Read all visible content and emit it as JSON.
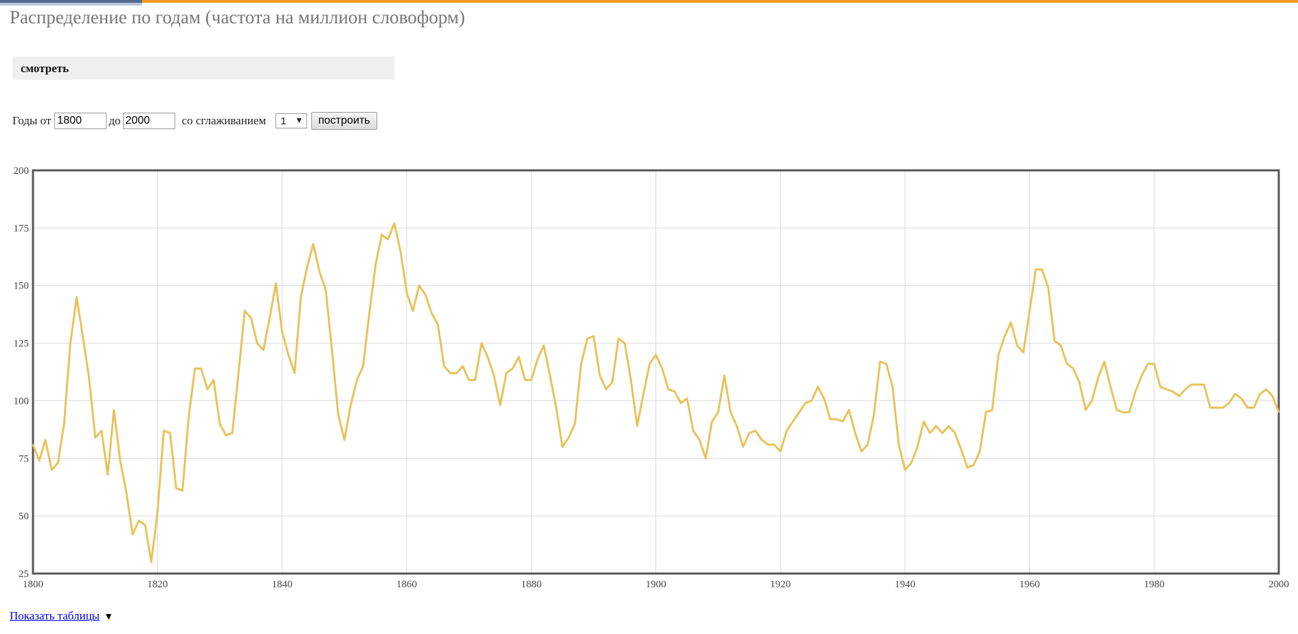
{
  "page": {
    "title": "Распределение по годам (частота на миллион словоформ)",
    "view_label": "смотреть",
    "show_table_label": "Показать таблицы",
    "show_table_arrow": "▼"
  },
  "controls": {
    "years_from_label": "Годы от",
    "years_from_value": "1800",
    "years_to_label": "до",
    "years_to_value": "2000",
    "smoothing_label": "со сглаживанием",
    "smoothing_value": "1",
    "build_button": "построить"
  },
  "colors": {
    "line": "#e8c25a",
    "accent_orange": "#f39a1e",
    "grid": "#d9d9d9",
    "frame": "#555555"
  },
  "chart_data": {
    "type": "line",
    "title": "",
    "xlabel": "",
    "ylabel": "",
    "xlim": [
      1800,
      2000
    ],
    "ylim": [
      25,
      200
    ],
    "grid": true,
    "x_ticks": [
      1800,
      1820,
      1840,
      1860,
      1880,
      1900,
      1920,
      1940,
      1960,
      1980,
      2000
    ],
    "y_ticks": [
      25,
      50,
      75,
      100,
      125,
      150,
      175,
      200
    ],
    "series": [
      {
        "name": "",
        "x": [
          1800,
          1801,
          1802,
          1803,
          1804,
          1805,
          1806,
          1807,
          1808,
          1809,
          1810,
          1811,
          1812,
          1813,
          1814,
          1815,
          1816,
          1817,
          1818,
          1819,
          1820,
          1821,
          1822,
          1823,
          1824,
          1825,
          1826,
          1827,
          1828,
          1829,
          1830,
          1831,
          1832,
          1833,
          1834,
          1835,
          1836,
          1837,
          1838,
          1839,
          1840,
          1841,
          1842,
          1843,
          1844,
          1845,
          1846,
          1847,
          1848,
          1849,
          1850,
          1851,
          1852,
          1853,
          1854,
          1855,
          1856,
          1857,
          1858,
          1859,
          1860,
          1861,
          1862,
          1863,
          1864,
          1865,
          1866,
          1867,
          1868,
          1869,
          1870,
          1871,
          1872,
          1873,
          1874,
          1875,
          1876,
          1877,
          1878,
          1879,
          1880,
          1881,
          1882,
          1883,
          1884,
          1885,
          1886,
          1887,
          1888,
          1889,
          1890,
          1891,
          1892,
          1893,
          1894,
          1895,
          1896,
          1897,
          1898,
          1899,
          1900,
          1901,
          1902,
          1903,
          1904,
          1905,
          1906,
          1907,
          1908,
          1909,
          1910,
          1911,
          1912,
          1913,
          1914,
          1915,
          1916,
          1917,
          1918,
          1919,
          1920,
          1921,
          1922,
          1923,
          1924,
          1925,
          1926,
          1927,
          1928,
          1929,
          1930,
          1931,
          1932,
          1933,
          1934,
          1935,
          1936,
          1937,
          1938,
          1939,
          1940,
          1941,
          1942,
          1943,
          1944,
          1945,
          1946,
          1947,
          1948,
          1949,
          1950,
          1951,
          1952,
          1953,
          1954,
          1955,
          1956,
          1957,
          1958,
          1959,
          1960,
          1961,
          1962,
          1963,
          1964,
          1965,
          1966,
          1967,
          1968,
          1969,
          1970,
          1971,
          1972,
          1973,
          1974,
          1975,
          1976,
          1977,
          1978,
          1979,
          1980,
          1981,
          1982,
          1983,
          1984,
          1985,
          1986,
          1987,
          1988,
          1989,
          1990,
          1991,
          1992,
          1993,
          1994,
          1995,
          1996,
          1997,
          1998,
          1999,
          2000
        ],
        "values": [
          81,
          74,
          83,
          70,
          73,
          90,
          125,
          145,
          128,
          110,
          84,
          87,
          68,
          96,
          74,
          60,
          42,
          48,
          46,
          30,
          52,
          87,
          86,
          62,
          61,
          93,
          114,
          114,
          105,
          109,
          90,
          85,
          86,
          112,
          139,
          136,
          125,
          122,
          136,
          151,
          130,
          120,
          112,
          145,
          158,
          168,
          156,
          148,
          122,
          94,
          83,
          98,
          109,
          115,
          138,
          159,
          172,
          170,
          177,
          165,
          147,
          139,
          150,
          146,
          138,
          133,
          115,
          112,
          112,
          115,
          109,
          109,
          125,
          119,
          111,
          98,
          112,
          114,
          119,
          109,
          109,
          118,
          124,
          111,
          97,
          80,
          84,
          90,
          116,
          127,
          128,
          111,
          105,
          108,
          127,
          125,
          109,
          89,
          103,
          116,
          120,
          114,
          105,
          104,
          99,
          101,
          87,
          83,
          75,
          91,
          95,
          111,
          95,
          89,
          80,
          86,
          87,
          83,
          81,
          81,
          78,
          87,
          91,
          95,
          99,
          100,
          106,
          101,
          92,
          92,
          91,
          96,
          86,
          78,
          81,
          94,
          117,
          116,
          106,
          81,
          70,
          73,
          80,
          91,
          86,
          89,
          86,
          89,
          86,
          79,
          71,
          72,
          78,
          95,
          96,
          120,
          128,
          134,
          124,
          121,
          139,
          157,
          157,
          149,
          126,
          124,
          116,
          114,
          108,
          96,
          100,
          110,
          117,
          106,
          96,
          95,
          95,
          104,
          111,
          116,
          116,
          106,
          105,
          104,
          102,
          105,
          107,
          107,
          107,
          97,
          97,
          97,
          99,
          103,
          101,
          97,
          97,
          103,
          105,
          102,
          95
        ]
      }
    ]
  }
}
